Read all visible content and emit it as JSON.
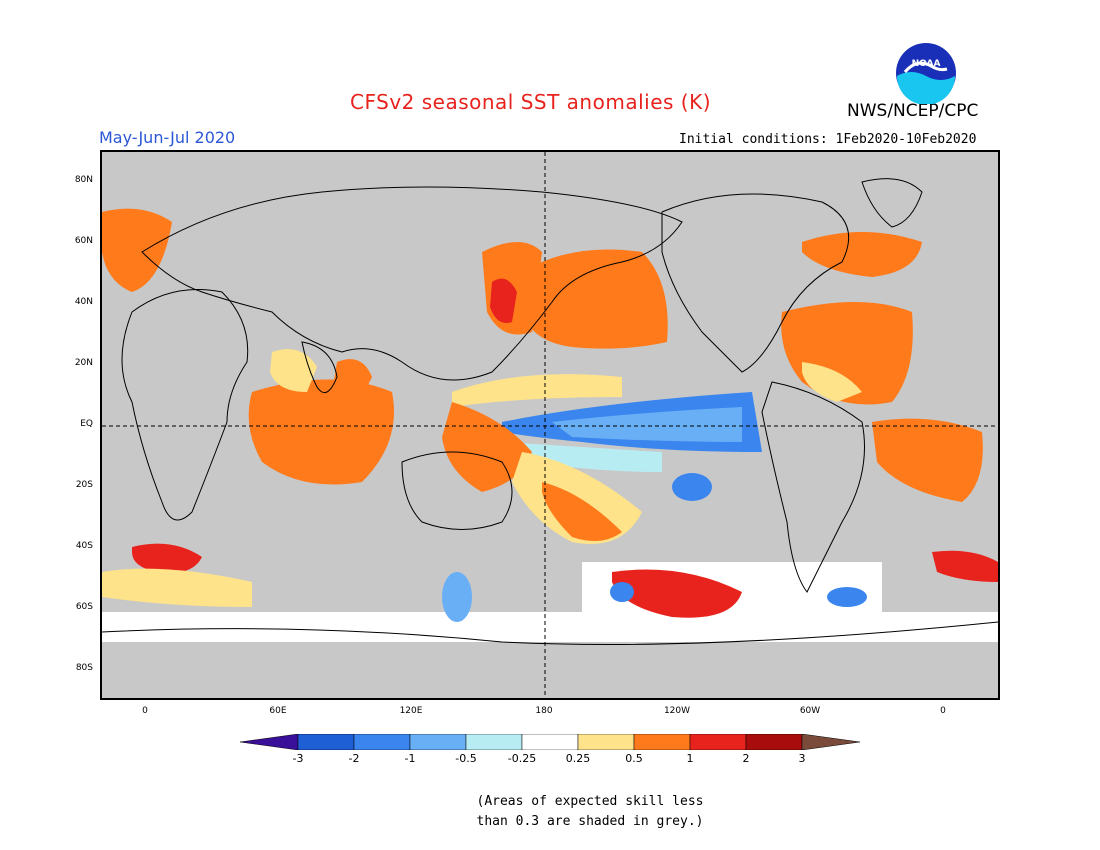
{
  "header": {
    "title": "CFSv2 seasonal SST anomalies (K)",
    "agency": "NWS/NCEP/CPC",
    "season": "May-Jun-Jul 2020",
    "initial_conditions": "Initial conditions: 1Feb2020-10Feb2020",
    "logo_text": "NOAA"
  },
  "map": {
    "latitude_labels": [
      "80N",
      "60N",
      "40N",
      "20N",
      "EQ",
      "20S",
      "40S",
      "60S",
      "80S"
    ],
    "longitude_labels": [
      "0",
      "60E",
      "120E",
      "180",
      "120W",
      "60W",
      "0"
    ],
    "skill_mask_color": "#c8c8c8"
  },
  "legend": {
    "labels": [
      "-3",
      "-2",
      "-1",
      "-0.5",
      "-0.25",
      "0.25",
      "0.5",
      "1",
      "2",
      "3"
    ],
    "colors": [
      "#3a0f9a",
      "#1f5fd6",
      "#3a86ee",
      "#69aff5",
      "#b8ecf3",
      "#ffffff",
      "#ffe38a",
      "#ff7a1a",
      "#e8231d",
      "#a80c0c",
      "#7a4b3a"
    ]
  },
  "note": {
    "line1": "(Areas of expected skill less",
    "line2": "than 0.3 are shaded in grey.)"
  }
}
